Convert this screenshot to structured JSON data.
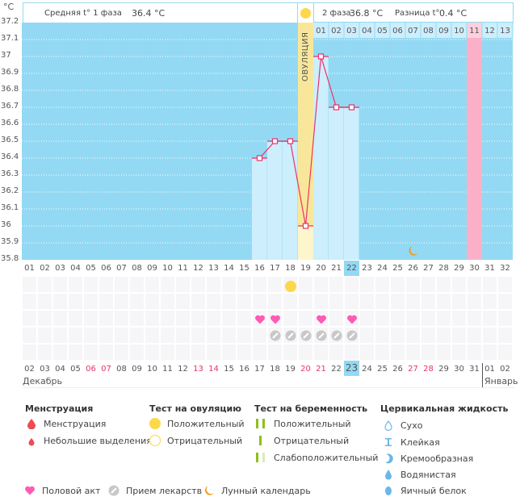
{
  "header": {
    "unit_label": "°C",
    "phase1_label": "Средняя t° 1 фаза",
    "phase1_value": "36.4 °C",
    "phase2_label": "2 фаза",
    "phase2_value": "36.8 °C",
    "diff_label": "Разница t°",
    "diff_value": "0.4 °C",
    "ovulation_label": "ОВУЛЯЦИЯ"
  },
  "chart_data": {
    "type": "line",
    "title": "",
    "xlabel": "",
    "ylabel": "°C",
    "ylim": [
      35.8,
      37.2
    ],
    "yticks": [
      "37.2",
      "37.1",
      "37",
      "36.9",
      "36.8",
      "36.7",
      "36.6",
      "36.5",
      "36.4",
      "36.3",
      "36.2",
      "36.1",
      "36",
      "35.9",
      "35.8"
    ],
    "cycle_days": [
      "01",
      "02",
      "03",
      "04",
      "05",
      "06",
      "07",
      "08",
      "09",
      "10",
      "11",
      "12",
      "13",
      "14",
      "15",
      "16",
      "17",
      "18",
      "19",
      "20",
      "21",
      "22",
      "23",
      "24",
      "25",
      "26",
      "27",
      "28",
      "29",
      "30",
      "31",
      "32"
    ],
    "today_cycle_day": "22",
    "phase2_day_labels": [
      "01",
      "02",
      "03",
      "04",
      "05",
      "06",
      "07",
      "08",
      "09",
      "10",
      "11",
      "12",
      "13"
    ],
    "phase2_start_cycle_day": 20,
    "ovulation_cycle_day": 19,
    "predicted_period_cycle_day": 30,
    "series": [
      {
        "name": "BBT",
        "color": "#e8336a",
        "points": [
          {
            "day": 16,
            "value": 36.4
          },
          {
            "day": 17,
            "value": 36.5
          },
          {
            "day": 18,
            "value": 36.5
          },
          {
            "day": 19,
            "value": 36.0
          },
          {
            "day": 20,
            "value": 37.0
          },
          {
            "day": 21,
            "value": 36.7
          },
          {
            "day": 22,
            "value": 36.7
          }
        ]
      }
    ],
    "moon_cycle_day": 26
  },
  "calendar": {
    "dates": [
      "02",
      "03",
      "04",
      "05",
      "06",
      "07",
      "08",
      "09",
      "10",
      "11",
      "12",
      "13",
      "14",
      "15",
      "16",
      "17",
      "18",
      "19",
      "20",
      "21",
      "22",
      "23",
      "24",
      "25",
      "26",
      "27",
      "28",
      "29",
      "30",
      "31",
      "01",
      "02"
    ],
    "weekend_indices": [
      4,
      5,
      11,
      12,
      18,
      19,
      25,
      26
    ],
    "today_index": 21,
    "month1": "Декабрь",
    "month2": "Январь",
    "month2_start_index": 30,
    "ovulation_test_positive_days": [
      18
    ],
    "intercourse_days": [
      16,
      17,
      20,
      22
    ],
    "medication_days": [
      17,
      18,
      19,
      20,
      21,
      22
    ]
  },
  "legend": {
    "menstruation": {
      "title": "Менструация",
      "items": [
        "Менструация",
        "Небольшие выделения"
      ]
    },
    "ovulation_test": {
      "title": "Тест на овуляцию",
      "items": [
        "Положительный",
        "Отрицательный"
      ]
    },
    "pregnancy_test": {
      "title": "Тест на беременность",
      "items": [
        "Положительный",
        "Отрицательный",
        "Слабоположительный"
      ]
    },
    "cervical_fluid": {
      "title": "Цервикальная жидкость",
      "items": [
        "Сухо",
        "Клейкая",
        "Кремообразная",
        "Водянистая",
        "Яичный белок"
      ]
    },
    "other": [
      "Половой акт",
      "Прием лекарств",
      "Лунный календарь"
    ]
  },
  "colors": {
    "chart_bg": "#93d9f3",
    "bar_fill": "#cdeefc",
    "ovulation": "#f8e79b",
    "period": "#fbb0c8",
    "line": "#e8336a",
    "today": "#93d9f3",
    "weekend": "#e8336a",
    "heart": "#ff5ab4",
    "pill": "#c8c8c8",
    "moon": "#f39a1e",
    "sun": "#fcd84a",
    "pregnancy": "#8fbf1a",
    "drop_red": "#ef4b55",
    "drop_blue": "#6bb7ea"
  }
}
